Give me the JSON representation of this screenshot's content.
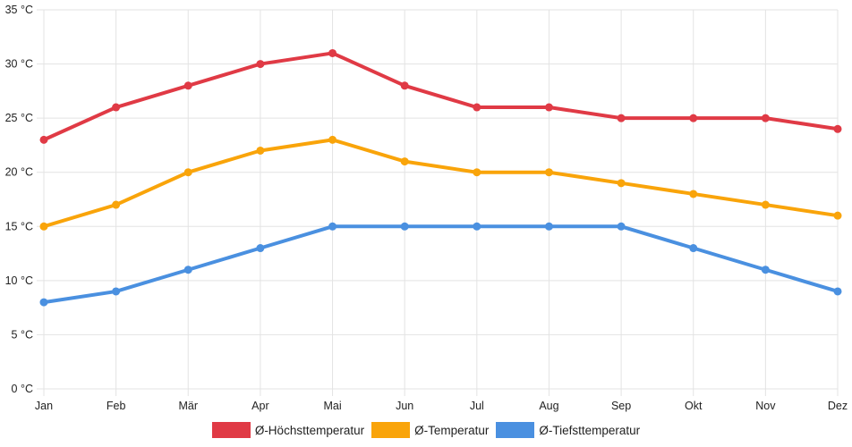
{
  "chart_data": {
    "type": "line",
    "categories": [
      "Jan",
      "Feb",
      "Mär",
      "Apr",
      "Mai",
      "Jun",
      "Jul",
      "Aug",
      "Sep",
      "Okt",
      "Nov",
      "Dez"
    ],
    "ylim": [
      0,
      35
    ],
    "yticks": [
      0,
      5,
      10,
      15,
      20,
      25,
      30,
      35
    ],
    "y_unit": "°C",
    "grid": true,
    "legend_position": "bottom",
    "series": [
      {
        "name": "Ø-Höchsttemperatur",
        "color": "#e03a45",
        "values": [
          23,
          26,
          28,
          30,
          31,
          28,
          26,
          26,
          25,
          25,
          25,
          24
        ]
      },
      {
        "name": "Ø-Temperatur",
        "color": "#f9a40a",
        "values": [
          15,
          17,
          20,
          22,
          23,
          21,
          20,
          20,
          19,
          18,
          17,
          16
        ]
      },
      {
        "name": "Ø-Tiefsttemperatur",
        "color": "#4a90e0",
        "values": [
          8,
          9,
          11,
          13,
          15,
          15,
          15,
          15,
          15,
          13,
          11,
          9
        ]
      }
    ]
  }
}
